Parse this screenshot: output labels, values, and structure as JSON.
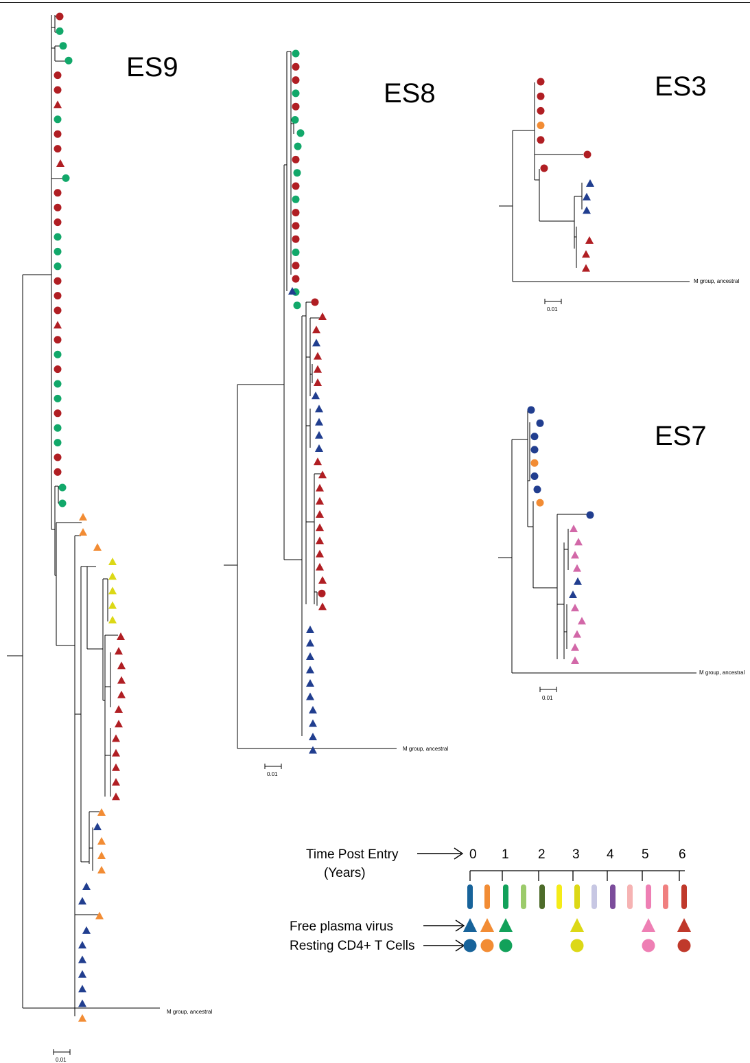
{
  "colors": {
    "red": "#b01e23",
    "green": "#12a86a",
    "orange": "#f28c34",
    "yellow": "#dcd816",
    "blue": "#213e8f",
    "pink": "#d268a8"
  },
  "trees": {
    "es9": {
      "label": "ES9",
      "outgroup": "M group, ancestral",
      "scale": "0.01"
    },
    "es8": {
      "label": "ES8",
      "outgroup": "M group, ancestral",
      "scale": "0.01"
    },
    "es3": {
      "label": "ES3",
      "outgroup": "M group, ancestral",
      "scale": "0.01"
    },
    "es7": {
      "label": "ES7",
      "outgroup": "M group, ancestral",
      "scale": "0.01"
    }
  },
  "legend": {
    "time_title_line1": "Time Post Entry",
    "time_title_line2": "(Years)",
    "years": [
      "0",
      "1",
      "2",
      "3",
      "4",
      "5",
      "6"
    ],
    "swatch_colors": [
      "#17639a",
      "#f28c34",
      "#12a15a",
      "#9ccb6b",
      "#4d6b2a",
      "#f5ec18",
      "#dcd816",
      "#c7c7e3",
      "#7b4c9b",
      "#f6b3b3",
      "#ee7fb4",
      "#f08080",
      "#c0392b"
    ],
    "plasma_label": "Free plasma virus",
    "cells_label": "Resting CD4+ T Cells",
    "plasma_colors": [
      "#17639a",
      "#f28c34",
      "#12a15a",
      "",
      "",
      "",
      "#dcd816",
      "",
      "",
      "",
      "#ee7fb4",
      "",
      "#c0392b"
    ],
    "cells_colors": [
      "#17639a",
      "#f28c34",
      "#12a15a",
      "",
      "",
      "",
      "#dcd816",
      "",
      "",
      "",
      "#ee7fb4",
      "",
      "#c0392b"
    ]
  }
}
